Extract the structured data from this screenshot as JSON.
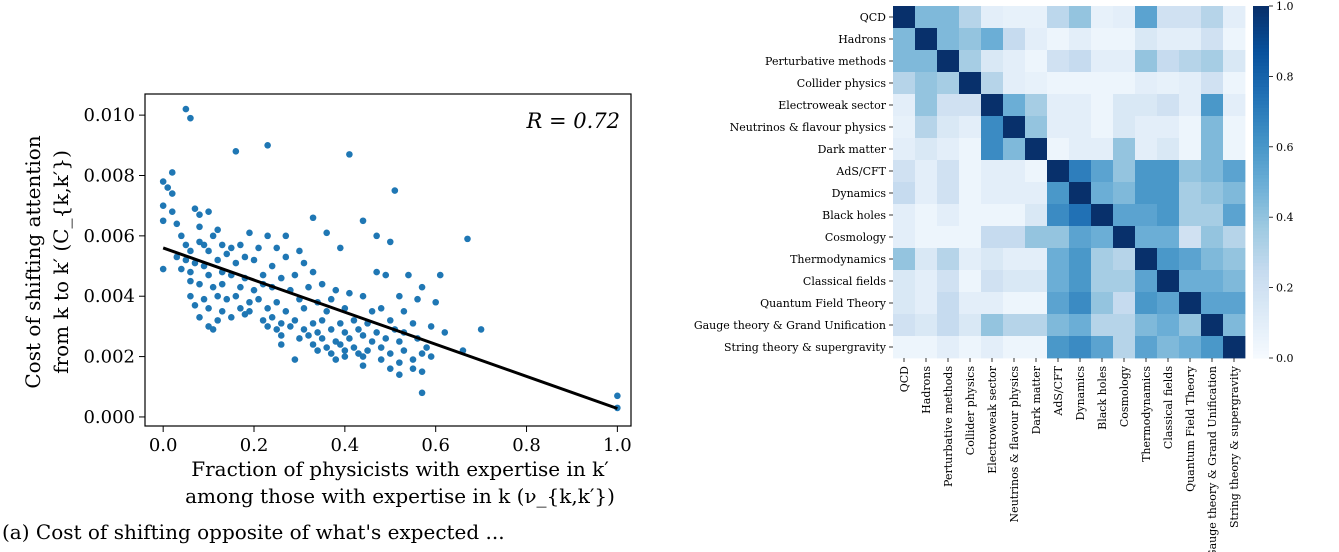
{
  "caption": "(a) Cost of shifting opposite of what's expected ...",
  "chart_data": [
    {
      "type": "scatter",
      "annotation": "R = 0.72",
      "xlabel_line1": "Fraction of physicists with expertise in k′",
      "xlabel_line2": "among those with expertise in k (ν_{k,k′})",
      "ylabel_line1": "Cost of shifting attention",
      "ylabel_line2": "from k to k′ (C_{k,k′})",
      "xlim": [
        -0.04,
        1.03
      ],
      "ylim": [
        -0.0003,
        0.0107
      ],
      "xticks": [
        "0.0",
        "0.2",
        "0.4",
        "0.6",
        "0.8",
        "1.0"
      ],
      "xtick_values": [
        0,
        0.2,
        0.4,
        0.6,
        0.8,
        1.0
      ],
      "yticks": [
        "0.000",
        "0.002",
        "0.004",
        "0.006",
        "0.008",
        "0.010"
      ],
      "ytick_values": [
        0,
        0.002,
        0.004,
        0.006,
        0.008,
        0.01
      ],
      "point_color": "#1f77b4",
      "fit_line": {
        "x": [
          0.0,
          1.0
        ],
        "y": [
          0.0056,
          0.00028
        ],
        "color": "#000000"
      },
      "points": [
        [
          0.05,
          0.0102
        ],
        [
          0.06,
          0.0099
        ],
        [
          0.23,
          0.009
        ],
        [
          0.16,
          0.0088
        ],
        [
          0.41,
          0.0087
        ],
        [
          0.02,
          0.0081
        ],
        [
          0.0,
          0.0078
        ],
        [
          0.01,
          0.0076
        ],
        [
          0.02,
          0.0074
        ],
        [
          0.51,
          0.0075
        ],
        [
          0.0,
          0.007
        ],
        [
          0.02,
          0.0068
        ],
        [
          0.07,
          0.0069
        ],
        [
          0.08,
          0.0067
        ],
        [
          0.1,
          0.0068
        ],
        [
          0.33,
          0.0066
        ],
        [
          0.44,
          0.0065
        ],
        [
          0.0,
          0.0065
        ],
        [
          0.03,
          0.0064
        ],
        [
          0.67,
          0.0059
        ],
        [
          0.08,
          0.0063
        ],
        [
          0.12,
          0.0062
        ],
        [
          0.11,
          0.006
        ],
        [
          0.04,
          0.006
        ],
        [
          0.08,
          0.0058
        ],
        [
          0.19,
          0.0061
        ],
        [
          0.23,
          0.006
        ],
        [
          0.27,
          0.006
        ],
        [
          0.36,
          0.0061
        ],
        [
          0.47,
          0.006
        ],
        [
          0.5,
          0.0058
        ],
        [
          0.05,
          0.0057
        ],
        [
          0.09,
          0.0057
        ],
        [
          0.13,
          0.0057
        ],
        [
          0.15,
          0.0056
        ],
        [
          0.17,
          0.0057
        ],
        [
          0.21,
          0.0056
        ],
        [
          0.25,
          0.0056
        ],
        [
          0.3,
          0.0055
        ],
        [
          0.39,
          0.0056
        ],
        [
          0.06,
          0.0055
        ],
        [
          0.1,
          0.0055
        ],
        [
          0.14,
          0.0054
        ],
        [
          0.18,
          0.0053
        ],
        [
          0.03,
          0.0053
        ],
        [
          0.05,
          0.0052
        ],
        [
          0.07,
          0.0051
        ],
        [
          0.09,
          0.005
        ],
        [
          0.12,
          0.0052
        ],
        [
          0.16,
          0.0051
        ],
        [
          0.2,
          0.0052
        ],
        [
          0.24,
          0.005
        ],
        [
          0.27,
          0.0053
        ],
        [
          0.31,
          0.0051
        ],
        [
          0.0,
          0.0049
        ],
        [
          0.04,
          0.0049
        ],
        [
          0.06,
          0.0048
        ],
        [
          0.1,
          0.0047
        ],
        [
          0.13,
          0.0048
        ],
        [
          0.15,
          0.0047
        ],
        [
          0.18,
          0.0046
        ],
        [
          0.22,
          0.0047
        ],
        [
          0.26,
          0.0046
        ],
        [
          0.29,
          0.0047
        ],
        [
          0.33,
          0.0048
        ],
        [
          0.47,
          0.0048
        ],
        [
          0.49,
          0.0047
        ],
        [
          0.54,
          0.0047
        ],
        [
          0.61,
          0.0047
        ],
        [
          0.06,
          0.0045
        ],
        [
          0.08,
          0.0044
        ],
        [
          0.11,
          0.0043
        ],
        [
          0.13,
          0.0044
        ],
        [
          0.17,
          0.0043
        ],
        [
          0.2,
          0.0042
        ],
        [
          0.22,
          0.0044
        ],
        [
          0.24,
          0.0043
        ],
        [
          0.28,
          0.0042
        ],
        [
          0.32,
          0.0043
        ],
        [
          0.35,
          0.0044
        ],
        [
          0.38,
          0.0042
        ],
        [
          0.41,
          0.0041
        ],
        [
          0.57,
          0.0043
        ],
        [
          0.06,
          0.004
        ],
        [
          0.09,
          0.0039
        ],
        [
          0.12,
          0.004
        ],
        [
          0.14,
          0.0039
        ],
        [
          0.16,
          0.004
        ],
        [
          0.19,
          0.0038
        ],
        [
          0.21,
          0.0039
        ],
        [
          0.25,
          0.0038
        ],
        [
          0.3,
          0.0039
        ],
        [
          0.34,
          0.0038
        ],
        [
          0.37,
          0.0039
        ],
        [
          0.44,
          0.004
        ],
        [
          0.52,
          0.004
        ],
        [
          0.56,
          0.0039
        ],
        [
          0.6,
          0.0038
        ],
        [
          0.07,
          0.0037
        ],
        [
          0.1,
          0.0036
        ],
        [
          0.13,
          0.0035
        ],
        [
          0.17,
          0.0036
        ],
        [
          0.19,
          0.0035
        ],
        [
          0.23,
          0.0036
        ],
        [
          0.27,
          0.0035
        ],
        [
          0.31,
          0.0036
        ],
        [
          0.36,
          0.0035
        ],
        [
          0.4,
          0.0036
        ],
        [
          0.46,
          0.0035
        ],
        [
          0.48,
          0.0036
        ],
        [
          0.53,
          0.0035
        ],
        [
          0.08,
          0.0033
        ],
        [
          0.12,
          0.0032
        ],
        [
          0.15,
          0.0033
        ],
        [
          0.18,
          0.0034
        ],
        [
          0.22,
          0.0032
        ],
        [
          0.24,
          0.0033
        ],
        [
          0.26,
          0.0031
        ],
        [
          0.29,
          0.0032
        ],
        [
          0.33,
          0.0031
        ],
        [
          0.35,
          0.0032
        ],
        [
          0.39,
          0.0031
        ],
        [
          0.42,
          0.0032
        ],
        [
          0.45,
          0.0031
        ],
        [
          0.5,
          0.0032
        ],
        [
          0.55,
          0.0031
        ],
        [
          0.59,
          0.003
        ],
        [
          0.1,
          0.003
        ],
        [
          0.11,
          0.0029
        ],
        [
          0.23,
          0.003
        ],
        [
          0.25,
          0.0029
        ],
        [
          0.28,
          0.003
        ],
        [
          0.31,
          0.0029
        ],
        [
          0.34,
          0.0028
        ],
        [
          0.37,
          0.0029
        ],
        [
          0.4,
          0.0028
        ],
        [
          0.43,
          0.0029
        ],
        [
          0.47,
          0.0028
        ],
        [
          0.51,
          0.0029
        ],
        [
          0.53,
          0.0028
        ],
        [
          0.62,
          0.0028
        ],
        [
          0.7,
          0.0029
        ],
        [
          0.26,
          0.0027
        ],
        [
          0.3,
          0.0026
        ],
        [
          0.32,
          0.0027
        ],
        [
          0.35,
          0.0026
        ],
        [
          0.38,
          0.0025
        ],
        [
          0.41,
          0.0026
        ],
        [
          0.44,
          0.0027
        ],
        [
          0.46,
          0.0025
        ],
        [
          0.49,
          0.0026
        ],
        [
          0.52,
          0.0025
        ],
        [
          0.56,
          0.0026
        ],
        [
          0.26,
          0.0024
        ],
        [
          0.33,
          0.0024
        ],
        [
          0.36,
          0.0023
        ],
        [
          0.39,
          0.0024
        ],
        [
          0.42,
          0.0023
        ],
        [
          0.45,
          0.0022
        ],
        [
          0.48,
          0.0023
        ],
        [
          0.58,
          0.0023
        ],
        [
          0.34,
          0.0022
        ],
        [
          0.37,
          0.0021
        ],
        [
          0.4,
          0.0022
        ],
        [
          0.43,
          0.0021
        ],
        [
          0.5,
          0.0021
        ],
        [
          0.53,
          0.0022
        ],
        [
          0.57,
          0.0021
        ],
        [
          0.66,
          0.0022
        ],
        [
          0.29,
          0.0019
        ],
        [
          0.38,
          0.0019
        ],
        [
          0.4,
          0.002
        ],
        [
          0.44,
          0.002
        ],
        [
          0.48,
          0.0019
        ],
        [
          0.52,
          0.0018
        ],
        [
          0.55,
          0.0019
        ],
        [
          0.59,
          0.002
        ],
        [
          0.44,
          0.0017
        ],
        [
          0.5,
          0.0016
        ],
        [
          0.55,
          0.0016
        ],
        [
          0.52,
          0.0014
        ],
        [
          0.57,
          0.0015
        ],
        [
          0.57,
          0.0008
        ],
        [
          1.0,
          0.0007
        ],
        [
          1.0,
          0.0003
        ]
      ]
    },
    {
      "type": "heatmap",
      "labels": [
        "QCD",
        "Hadrons",
        "Perturbative methods",
        "Collider physics",
        "Electroweak sector",
        "Neutrinos & flavour physics",
        "Dark matter",
        "AdS/CFT",
        "Dynamics",
        "Black holes",
        "Cosmology",
        "Thermodynamics",
        "Classical fields",
        "Quantum Field Theory",
        "Gauge theory & Grand Unification",
        "String theory & supergravity"
      ],
      "colorbar_ticks": [
        "0.0",
        "0.2",
        "0.4",
        "0.6",
        "0.8",
        "1.0"
      ],
      "colorbar_tick_values": [
        0,
        0.2,
        0.4,
        0.6,
        0.8,
        1.0
      ],
      "color_low": "#f7fbff",
      "color_high": "#08306b",
      "matrix": [
        [
          1.0,
          0.45,
          0.45,
          0.3,
          0.1,
          0.08,
          0.08,
          0.28,
          0.4,
          0.08,
          0.1,
          0.55,
          0.2,
          0.2,
          0.3,
          0.1
        ],
        [
          0.45,
          1.0,
          0.45,
          0.4,
          0.5,
          0.25,
          0.1,
          0.05,
          0.1,
          0.05,
          0.05,
          0.15,
          0.1,
          0.1,
          0.2,
          0.05
        ],
        [
          0.45,
          0.45,
          1.0,
          0.35,
          0.15,
          0.1,
          0.05,
          0.2,
          0.25,
          0.1,
          0.1,
          0.4,
          0.25,
          0.3,
          0.35,
          0.15
        ],
        [
          0.3,
          0.4,
          0.35,
          1.0,
          0.3,
          0.1,
          0.08,
          0.05,
          0.05,
          0.05,
          0.05,
          0.1,
          0.08,
          0.1,
          0.2,
          0.05
        ],
        [
          0.1,
          0.4,
          0.2,
          0.2,
          1.0,
          0.5,
          0.35,
          0.1,
          0.1,
          0.05,
          0.15,
          0.15,
          0.2,
          0.1,
          0.6,
          0.1
        ],
        [
          0.08,
          0.3,
          0.15,
          0.1,
          0.65,
          1.0,
          0.4,
          0.1,
          0.1,
          0.05,
          0.15,
          0.1,
          0.1,
          0.05,
          0.45,
          0.05
        ],
        [
          0.1,
          0.15,
          0.1,
          0.05,
          0.65,
          0.45,
          1.0,
          0.05,
          0.1,
          0.1,
          0.4,
          0.1,
          0.15,
          0.05,
          0.45,
          0.05
        ],
        [
          0.2,
          0.1,
          0.2,
          0.05,
          0.1,
          0.1,
          0.05,
          1.0,
          0.7,
          0.55,
          0.4,
          0.6,
          0.6,
          0.4,
          0.45,
          0.55
        ],
        [
          0.25,
          0.1,
          0.2,
          0.05,
          0.1,
          0.1,
          0.1,
          0.6,
          1.0,
          0.5,
          0.45,
          0.6,
          0.6,
          0.35,
          0.4,
          0.45
        ],
        [
          0.1,
          0.05,
          0.1,
          0.05,
          0.05,
          0.05,
          0.15,
          0.65,
          0.75,
          1.0,
          0.55,
          0.55,
          0.6,
          0.35,
          0.35,
          0.55
        ],
        [
          0.1,
          0.05,
          0.05,
          0.05,
          0.25,
          0.25,
          0.4,
          0.4,
          0.55,
          0.5,
          1.0,
          0.5,
          0.5,
          0.2,
          0.4,
          0.3
        ],
        [
          0.4,
          0.15,
          0.3,
          0.1,
          0.15,
          0.1,
          0.1,
          0.5,
          0.6,
          0.35,
          0.3,
          1.0,
          0.6,
          0.55,
          0.45,
          0.4
        ],
        [
          0.15,
          0.1,
          0.2,
          0.05,
          0.2,
          0.15,
          0.15,
          0.5,
          0.6,
          0.35,
          0.35,
          0.55,
          1.0,
          0.5,
          0.5,
          0.45
        ],
        [
          0.15,
          0.1,
          0.25,
          0.1,
          0.1,
          0.05,
          0.05,
          0.55,
          0.65,
          0.4,
          0.25,
          0.6,
          0.55,
          1.0,
          0.55,
          0.55
        ],
        [
          0.2,
          0.15,
          0.25,
          0.15,
          0.4,
          0.3,
          0.3,
          0.45,
          0.5,
          0.3,
          0.3,
          0.45,
          0.5,
          0.4,
          1.0,
          0.45
        ],
        [
          0.05,
          0.05,
          0.1,
          0.05,
          0.1,
          0.05,
          0.05,
          0.6,
          0.65,
          0.55,
          0.3,
          0.55,
          0.45,
          0.5,
          0.6,
          1.0
        ]
      ]
    }
  ]
}
